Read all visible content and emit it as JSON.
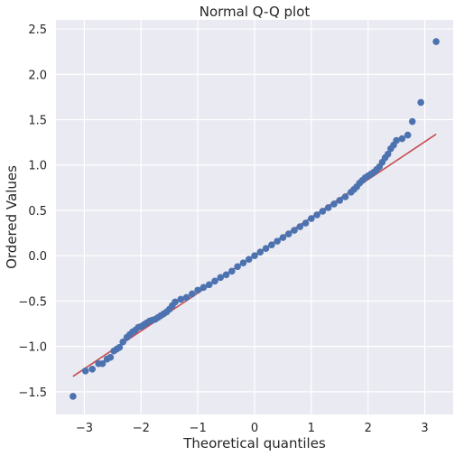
{
  "chart_data": {
    "type": "scatter",
    "title": "Normal Q-Q plot",
    "xlabel": "Theoretical quantiles",
    "ylabel": "Ordered Values",
    "xlim": [
      -3.5,
      3.5
    ],
    "ylim": [
      -1.75,
      2.6
    ],
    "xticks": [
      -3,
      -2,
      -1,
      0,
      1,
      2,
      3
    ],
    "xtick_labels": [
      "−3",
      "−2",
      "−1",
      "0",
      "1",
      "2",
      "3"
    ],
    "yticks": [
      -1.5,
      -1.0,
      -0.5,
      0.0,
      0.5,
      1.0,
      1.5,
      2.0,
      2.5
    ],
    "ytick_labels": [
      "−1.5",
      "−1.0",
      "−0.5",
      "0.0",
      "0.5",
      "1.0",
      "1.5",
      "2.0",
      "2.5"
    ],
    "grid": true,
    "legend": "none",
    "colors": {
      "background": "#eaeaf2",
      "grid": "#ffffff",
      "points": "#4c72b0",
      "fit_line": "#c44e52"
    },
    "series": [
      {
        "kind": "points",
        "x": [
          -3.2,
          -2.98,
          -2.86,
          -2.75,
          -2.68,
          -2.6,
          -2.54,
          -2.48,
          -2.43,
          -2.38,
          -2.32,
          -2.25,
          -2.2,
          -2.15,
          -2.1,
          -2.05,
          -2.0,
          -1.95,
          -1.9,
          -1.85,
          -1.8,
          -1.75,
          -1.7,
          -1.65,
          -1.6,
          -1.55,
          -1.5,
          -1.45,
          -1.4,
          -1.3,
          -1.2,
          -1.1,
          -1.0,
          -0.9,
          -0.8,
          -0.7,
          -0.6,
          -0.5,
          -0.4,
          -0.3,
          -0.2,
          -0.1,
          0.0,
          0.1,
          0.2,
          0.3,
          0.4,
          0.5,
          0.6,
          0.7,
          0.8,
          0.9,
          1.0,
          1.1,
          1.2,
          1.3,
          1.4,
          1.5,
          1.6,
          1.7,
          1.75,
          1.8,
          1.85,
          1.9,
          1.95,
          2.0,
          2.05,
          2.1,
          2.15,
          2.2,
          2.25,
          2.3,
          2.35,
          2.4,
          2.45,
          2.5,
          2.6,
          2.7,
          2.78,
          2.93,
          3.2
        ],
        "y": [
          -1.55,
          -1.27,
          -1.25,
          -1.19,
          -1.19,
          -1.14,
          -1.12,
          -1.05,
          -1.03,
          -1.01,
          -0.95,
          -0.9,
          -0.87,
          -0.84,
          -0.82,
          -0.79,
          -0.78,
          -0.76,
          -0.74,
          -0.72,
          -0.71,
          -0.7,
          -0.68,
          -0.66,
          -0.64,
          -0.62,
          -0.59,
          -0.55,
          -0.51,
          -0.48,
          -0.46,
          -0.42,
          -0.38,
          -0.35,
          -0.32,
          -0.28,
          -0.24,
          -0.21,
          -0.17,
          -0.12,
          -0.08,
          -0.04,
          0.0,
          0.04,
          0.08,
          0.12,
          0.16,
          0.2,
          0.24,
          0.28,
          0.32,
          0.36,
          0.41,
          0.45,
          0.49,
          0.53,
          0.57,
          0.61,
          0.65,
          0.7,
          0.73,
          0.76,
          0.8,
          0.83,
          0.86,
          0.88,
          0.9,
          0.92,
          0.95,
          0.98,
          1.03,
          1.08,
          1.12,
          1.18,
          1.22,
          1.27,
          1.29,
          1.33,
          1.48,
          1.69,
          2.36
        ]
      },
      {
        "kind": "line",
        "x": [
          -3.2,
          3.2
        ],
        "y": [
          -1.33,
          1.34
        ]
      }
    ]
  }
}
